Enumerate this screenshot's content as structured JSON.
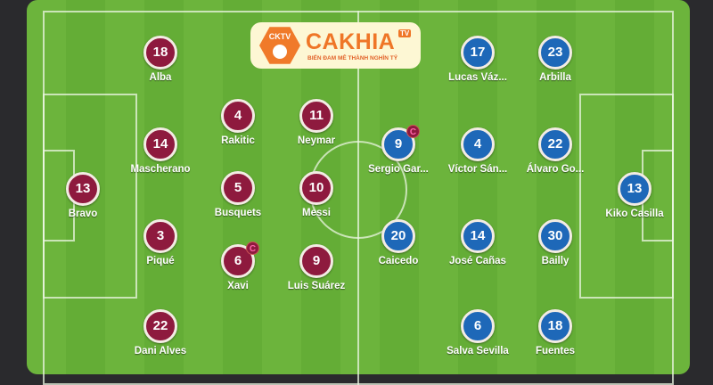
{
  "logo": {
    "badge": "CKTV",
    "brand": "CAKHIA",
    "tv": "TV",
    "slogan": "BIẾN ĐAM MÊ THÀNH NGHÌN TỶ"
  },
  "colors": {
    "home": "#8e1a3e",
    "away": "#1e68b8",
    "pitch": "#6cb43c"
  },
  "home": [
    {
      "number": "18",
      "name": "Alba"
    },
    {
      "number": "4",
      "name": "Rakitic"
    },
    {
      "number": "11",
      "name": "Neymar"
    },
    {
      "number": "14",
      "name": "Mascherano"
    },
    {
      "number": "13",
      "name": "Bravo"
    },
    {
      "number": "5",
      "name": "Busquets"
    },
    {
      "number": "10",
      "name": "Messi"
    },
    {
      "number": "3",
      "name": "Piqué"
    },
    {
      "number": "6",
      "name": "Xavi",
      "captain": "C"
    },
    {
      "number": "9",
      "name": "Luis Suárez"
    },
    {
      "number": "22",
      "name": "Dani Alves"
    }
  ],
  "away": [
    {
      "number": "17",
      "name": "Lucas Váz..."
    },
    {
      "number": "23",
      "name": "Arbilla"
    },
    {
      "number": "9",
      "name": "Sergio Gar...",
      "captain": "C"
    },
    {
      "number": "4",
      "name": "Víctor Sán..."
    },
    {
      "number": "22",
      "name": "Álvaro Go..."
    },
    {
      "number": "13",
      "name": "Kiko Casilla"
    },
    {
      "number": "20",
      "name": "Caicedo"
    },
    {
      "number": "14",
      "name": "José Cañas"
    },
    {
      "number": "30",
      "name": "Bailly"
    },
    {
      "number": "6",
      "name": "Salva Sevilla"
    },
    {
      "number": "18",
      "name": "Fuentes"
    }
  ]
}
